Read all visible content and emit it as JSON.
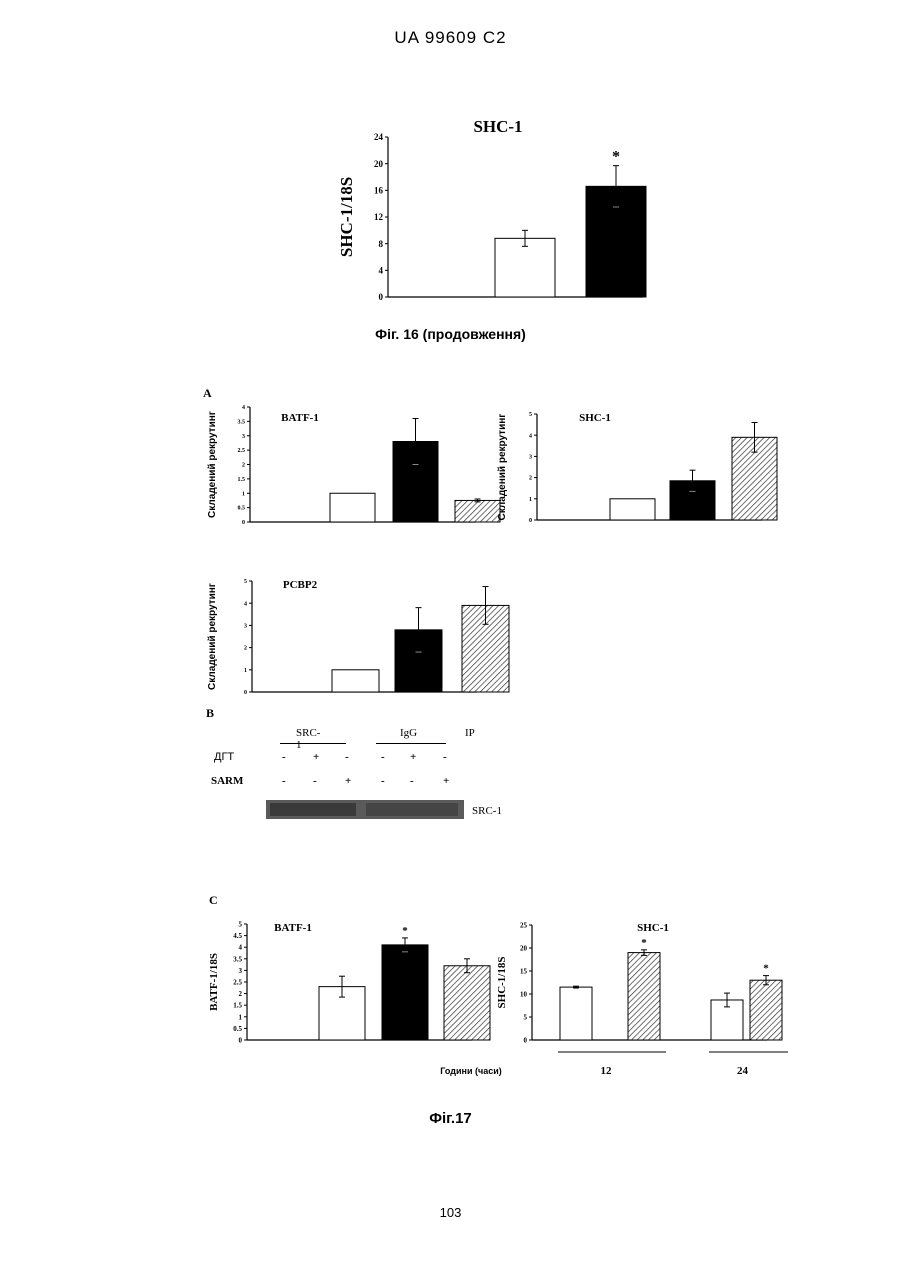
{
  "header": "UA   99609   C2",
  "fig16_caption": "Фіг. 16 (продовження)",
  "fig17_caption": "Фіг.17",
  "page_number": "103",
  "panel_labels": {
    "a": "A",
    "b": "B",
    "c": "C"
  },
  "blot": {
    "group_srci": "SRC-1",
    "group_igg": "IgG",
    "ip_label": "IP",
    "row1_label": "ДГТ",
    "row2_label": "SARM",
    "row1_signs": [
      "-",
      "+",
      "-",
      "-",
      "+",
      "-"
    ],
    "row2_signs": [
      "-",
      "-",
      "+",
      "-",
      "-",
      "+"
    ],
    "band_label": "SRC-1"
  },
  "colors": {
    "black_bar": "#000000",
    "white_bar": "#ffffff",
    "hatch": "#333333"
  },
  "chart_data": [
    {
      "id": "fig16",
      "type": "bar",
      "title": "SHC-1",
      "ylabel": "SHC-1/18S",
      "ylim": [
        0,
        24
      ],
      "yticks": [
        0,
        4,
        8,
        12,
        16,
        20,
        24
      ],
      "values": [
        8.8,
        16.6
      ],
      "errors": [
        1.2,
        3.1
      ],
      "fills": [
        "white",
        "black"
      ],
      "annotations": [
        "",
        "*"
      ]
    },
    {
      "id": "fig17a-batf1",
      "type": "bar",
      "title": "BATF-1",
      "ylabel": "Складений рекрутинг",
      "ylim": [
        0,
        4
      ],
      "yticks": [
        0,
        0.5,
        1,
        1.5,
        2,
        2.5,
        3,
        3.5,
        4
      ],
      "ytick_labels": [
        "0",
        "0.5",
        "1",
        "1.5",
        "2",
        "2.5",
        "3",
        "3.5",
        "4"
      ],
      "values": [
        1.0,
        2.8,
        0.75
      ],
      "errors": [
        0,
        0.8,
        0.05
      ],
      "fills": [
        "white",
        "black",
        "hatch"
      ],
      "annotations": [
        "",
        "",
        ""
      ]
    },
    {
      "id": "fig17a-shc1",
      "type": "bar",
      "title": "SHC-1",
      "ylabel": "Складений рекрутинг",
      "ylim": [
        0,
        5
      ],
      "yticks": [
        0,
        1,
        2,
        3,
        4,
        5
      ],
      "values": [
        1.0,
        1.85,
        3.9
      ],
      "errors": [
        0,
        0.5,
        0.7
      ],
      "fills": [
        "white",
        "black",
        "hatch"
      ],
      "annotations": [
        "",
        "",
        ""
      ]
    },
    {
      "id": "fig17a-pcbp2",
      "type": "bar",
      "title": "PCBP2",
      "ylabel": "Складений рекрутинг",
      "ylim": [
        0,
        5
      ],
      "yticks": [
        0,
        1,
        2,
        3,
        4,
        5
      ],
      "values": [
        1.0,
        2.8,
        3.9
      ],
      "errors": [
        0,
        1.0,
        0.85
      ],
      "fills": [
        "white",
        "black",
        "hatch"
      ],
      "annotations": [
        "",
        "",
        ""
      ]
    },
    {
      "id": "fig17c-batf1",
      "type": "bar",
      "title": "BATF-1",
      "ylabel": "BATF-1/18S",
      "ylim": [
        0,
        5
      ],
      "yticks": [
        0,
        0.5,
        1,
        1.5,
        2,
        2.5,
        3,
        3.5,
        4,
        4.5,
        5
      ],
      "ytick_labels": [
        "0",
        "0.5",
        "1",
        "1.5",
        "2",
        "2.5",
        "3",
        "3.5",
        "4",
        "4.5",
        "5"
      ],
      "values": [
        2.3,
        4.1,
        3.2
      ],
      "errors": [
        0.45,
        0.3,
        0.3
      ],
      "fills": [
        "white",
        "black",
        "hatch"
      ],
      "annotations": [
        "",
        "*",
        ""
      ]
    },
    {
      "id": "fig17c-shc1",
      "type": "bar",
      "title": "SHC-1",
      "ylabel": "SHC-1/18S",
      "ylim": [
        0,
        25
      ],
      "yticks": [
        0,
        5,
        10,
        15,
        20,
        25
      ],
      "values": [
        11.5,
        19.0,
        8.7,
        13.0
      ],
      "errors": [
        0.2,
        0.6,
        1.5,
        1.0
      ],
      "fills": [
        "white",
        "hatch",
        "white",
        "hatch"
      ],
      "annotations": [
        "",
        "*",
        "",
        "*"
      ],
      "xlabel": "Години (часи)",
      "group_labels": [
        "12",
        "24"
      ]
    }
  ]
}
